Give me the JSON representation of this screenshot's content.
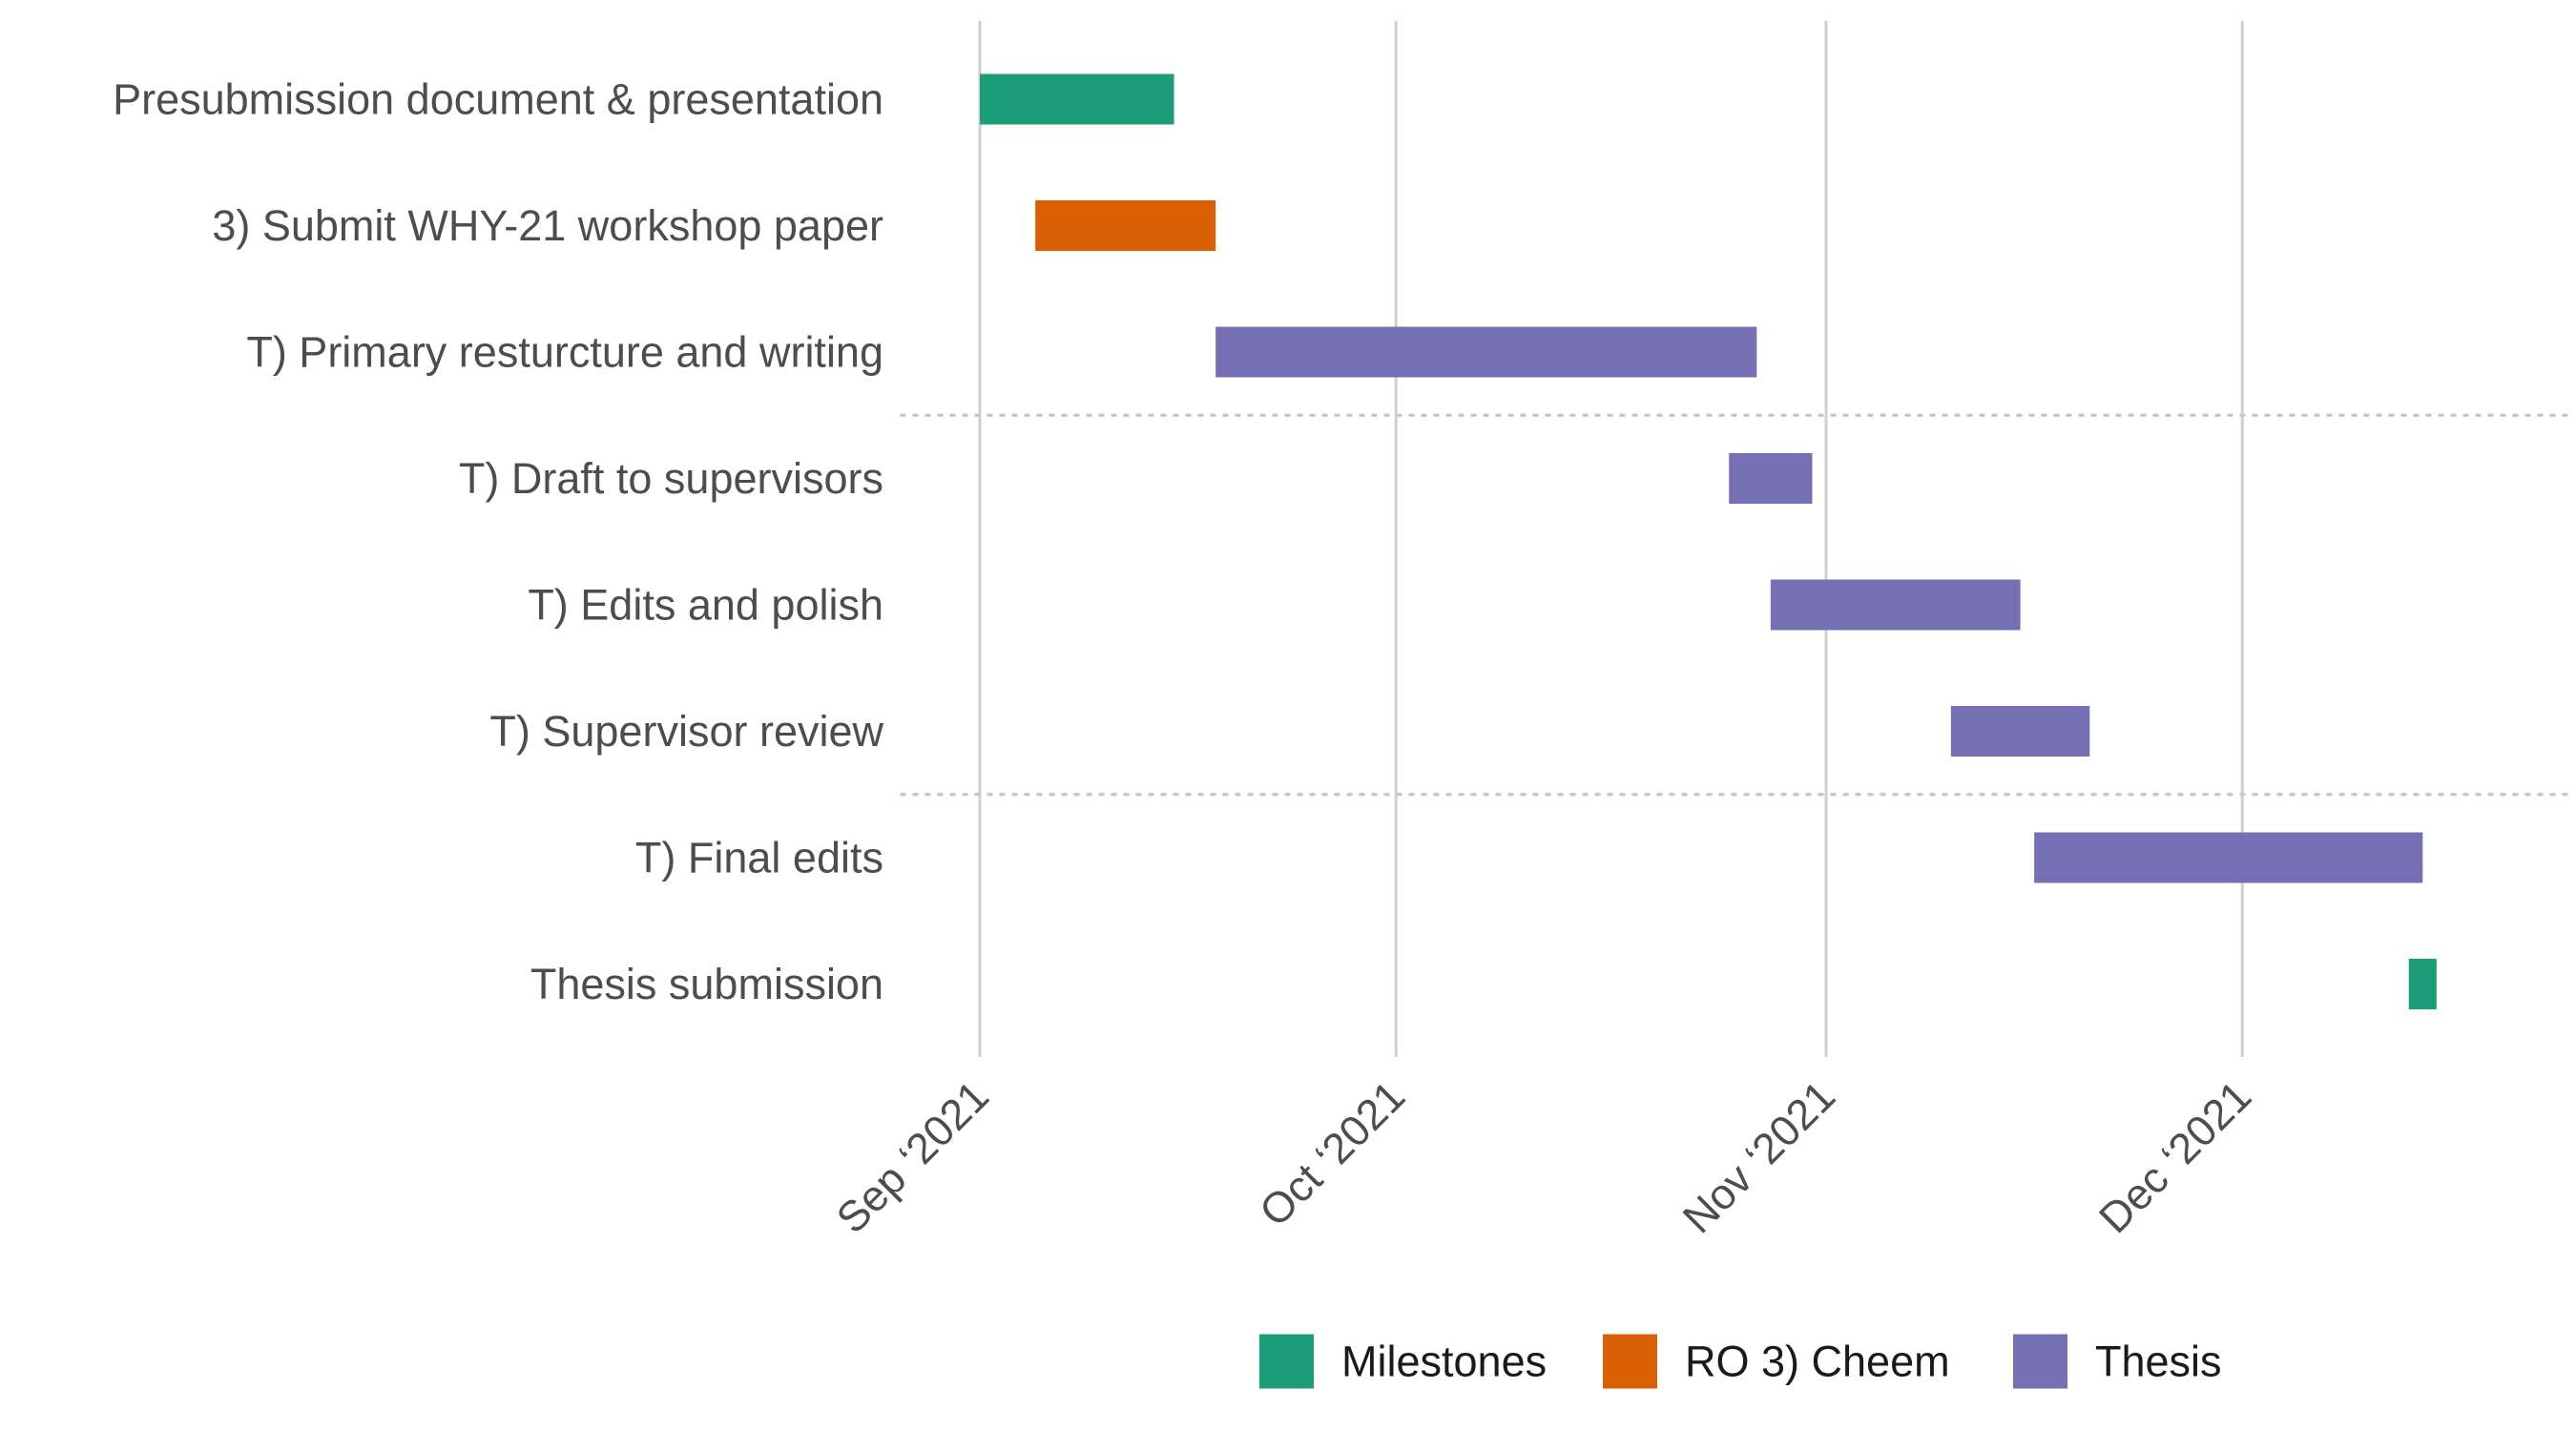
{
  "chart_data": {
    "type": "gantt",
    "x_axis": {
      "type": "date",
      "range": [
        "2021-09-01",
        "2021-12-19"
      ],
      "ticks": [
        {
          "date": "2021-09-01",
          "label": "Sep ‘2021"
        },
        {
          "date": "2021-10-01",
          "label": "Oct ‘2021"
        },
        {
          "date": "2021-11-01",
          "label": "Nov ‘2021"
        },
        {
          "date": "2021-12-01",
          "label": "Dec ‘2021"
        }
      ],
      "grid": true
    },
    "groups": [
      {
        "name": "Milestones",
        "color": "#1b9e77"
      },
      {
        "name": "RO 3) Cheem",
        "color": "#d95f02"
      },
      {
        "name": "Thesis",
        "color": "#7570b3"
      }
    ],
    "tasks": [
      {
        "label": "Presubmission document & presentation",
        "group": "Milestones",
        "start": "2021-09-01",
        "end": "2021-09-15"
      },
      {
        "label": "3) Submit WHY-21 workshop paper",
        "group": "RO 3) Cheem",
        "start": "2021-09-05",
        "end": "2021-09-18"
      },
      {
        "label": "T) Primary resturcture and writing",
        "group": "Thesis",
        "start": "2021-09-18",
        "end": "2021-10-27"
      },
      {
        "label": "T) Draft to supervisors",
        "group": "Thesis",
        "start": "2021-10-25",
        "end": "2021-10-31"
      },
      {
        "label": "T) Edits and polish",
        "group": "Thesis",
        "start": "2021-10-28",
        "end": "2021-11-15"
      },
      {
        "label": "T) Supervisor review",
        "group": "Thesis",
        "start": "2021-11-10",
        "end": "2021-11-20"
      },
      {
        "label": "T) Final edits",
        "group": "Thesis",
        "start": "2021-11-16",
        "end": "2021-12-14"
      },
      {
        "label": "Thesis submission",
        "group": "Milestones",
        "start": "2021-12-13",
        "end": "2021-12-15"
      }
    ],
    "dividers_after_task": [
      3,
      6
    ],
    "legend": {
      "position": "bottom"
    }
  }
}
